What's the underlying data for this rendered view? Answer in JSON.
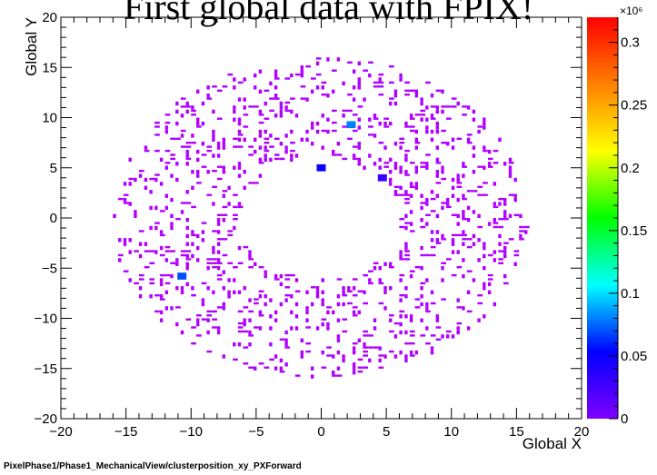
{
  "title": "First global data with FPIX!",
  "footer": "PixelPhase1/Phase1_MechanicalView/clusterposition_xy_PXForward",
  "chart_data": {
    "type": "heatmap",
    "title": "First global data with FPIX!",
    "xlabel": "Global X",
    "ylabel": "Global Y",
    "xlim": [
      -20,
      20
    ],
    "ylim": [
      -20,
      20
    ],
    "x_ticks": [
      -20,
      -15,
      -10,
      -5,
      0,
      5,
      10,
      15,
      20
    ],
    "y_ticks": [
      -20,
      -15,
      -10,
      -5,
      0,
      5,
      10,
      15,
      20
    ],
    "colorbar": {
      "min": 0,
      "max": 0.32,
      "multiplier_label": "×10⁶",
      "ticks": [
        "0",
        "0.05",
        "0.1",
        "0.15",
        "0.2",
        "0.25",
        "0.3"
      ],
      "tick_values": [
        0,
        0.05,
        0.1,
        0.15,
        0.2,
        0.25,
        0.3
      ]
    },
    "distribution": {
      "shape": "annulus",
      "center": [
        0,
        0
      ],
      "inner_radius": 6,
      "outer_radius": 16,
      "typical_value": 0.005
    },
    "hot_bins": [
      {
        "x": 0,
        "y": 5,
        "value": 0.05
      },
      {
        "x": 2.3,
        "y": 9.3,
        "value": 0.08
      },
      {
        "x": -10.7,
        "y": -5.8,
        "value": 0.07
      },
      {
        "x": 4.7,
        "y": 4.0,
        "value": 0.03
      }
    ],
    "grid": false
  },
  "colors": {
    "palette": [
      "#7f00ff",
      "#0000ff",
      "#00ffff",
      "#00ff00",
      "#ffff00",
      "#ff8000",
      "#ff0000"
    ],
    "low_bin": "#b000ff"
  }
}
